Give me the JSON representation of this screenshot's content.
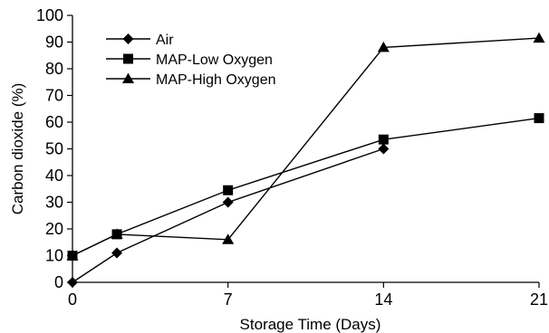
{
  "chart_data": {
    "type": "line",
    "title": "",
    "xlabel": "Storage Time (Days)",
    "ylabel": "Carbon dioxide (%)",
    "xlim": [
      0,
      21
    ],
    "ylim": [
      0,
      100
    ],
    "x_ticks": [
      0,
      7,
      14,
      21
    ],
    "y_ticks": [
      0,
      10,
      20,
      30,
      40,
      50,
      60,
      70,
      80,
      90,
      100
    ],
    "grid": false,
    "legend_position": "top-left",
    "series": [
      {
        "name": "Air",
        "marker": "diamond",
        "color": "#000000",
        "x": [
          0,
          2,
          7,
          14
        ],
        "values": [
          0,
          11,
          30,
          50
        ]
      },
      {
        "name": "MAP-Low Oxygen",
        "marker": "square",
        "color": "#000000",
        "x": [
          0,
          2,
          7,
          14,
          21
        ],
        "values": [
          10,
          18,
          34.5,
          53.5,
          61.5
        ]
      },
      {
        "name": "MAP-High Oxygen",
        "marker": "triangle",
        "color": "#000000",
        "x": [
          0,
          2,
          7,
          14,
          21
        ],
        "values": [
          10,
          18,
          16,
          88,
          91.5
        ]
      }
    ]
  }
}
